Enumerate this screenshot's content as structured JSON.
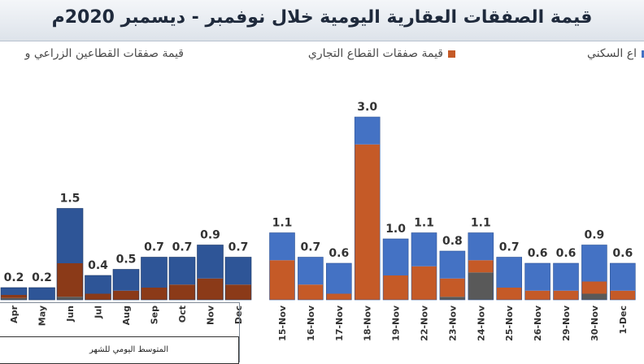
{
  "header": {
    "title": "قيمة الصفقات العقارية اليومية خلال نوفمبر - ديسمبر 2020م"
  },
  "legend": {
    "residential": "اع السكني",
    "commercial": "قيمة صفقات القطاع التجاري",
    "agri_industrial": "قيمة صفقات القطاعين الزراعي و"
  },
  "monthly_caption": "المتوسط اليومي للشهر",
  "colors": {
    "residential": "#4472c4",
    "residential_dark": "#2e5597",
    "commercial": "#c55a27",
    "commercial_dark": "#8b3a18",
    "agri_industrial": "#595959"
  },
  "chart_data": [
    {
      "type": "bar",
      "stacked": true,
      "categories": [
        "Apr",
        "May",
        "Jun",
        "Jul",
        "Aug",
        "Sep",
        "Oct",
        "Nov",
        "Dec"
      ],
      "totals": [
        "0.2",
        "0.2",
        "1.5",
        "0.4",
        "0.5",
        "0.7",
        "0.7",
        "0.9",
        "0.7"
      ],
      "series": [
        {
          "key": "residential",
          "values": [
            0.12,
            0.2,
            0.9,
            0.3,
            0.35,
            0.5,
            0.45,
            0.55,
            0.45
          ]
        },
        {
          "key": "commercial",
          "values": [
            0.05,
            0.0,
            0.55,
            0.1,
            0.15,
            0.2,
            0.25,
            0.35,
            0.25
          ]
        },
        {
          "key": "agri_industrial",
          "values": [
            0.03,
            0.0,
            0.05,
            0.0,
            0.0,
            0.0,
            0.0,
            0.0,
            0.0
          ]
        }
      ]
    },
    {
      "type": "bar",
      "stacked": true,
      "categories": [
        "15-Nov",
        "16-Nov",
        "17-Nov",
        "18-Nov",
        "19-Nov",
        "22-Nov",
        "23-Nov",
        "24-Nov",
        "25-Nov",
        "26-Nov",
        "29-Nov",
        "30-Nov",
        "1-Dec"
      ],
      "totals": [
        "1.1",
        "0.7",
        "0.6",
        "3.0",
        "1.0",
        "1.1",
        "0.8",
        "1.1",
        "0.7",
        "0.6",
        "0.6",
        "0.9",
        "0.6"
      ],
      "series": [
        {
          "key": "residential",
          "values": [
            0.45,
            0.45,
            0.5,
            0.45,
            0.6,
            0.55,
            0.45,
            0.45,
            0.5,
            0.45,
            0.45,
            0.6,
            0.45
          ]
        },
        {
          "key": "commercial",
          "values": [
            0.65,
            0.25,
            0.1,
            2.55,
            0.4,
            0.55,
            0.3,
            0.2,
            0.2,
            0.15,
            0.15,
            0.2,
            0.15
          ]
        },
        {
          "key": "agri_industrial",
          "values": [
            0.0,
            0.0,
            0.0,
            0.0,
            0.0,
            0.0,
            0.05,
            0.45,
            0.0,
            0.0,
            0.0,
            0.1,
            0.0
          ]
        }
      ]
    }
  ]
}
